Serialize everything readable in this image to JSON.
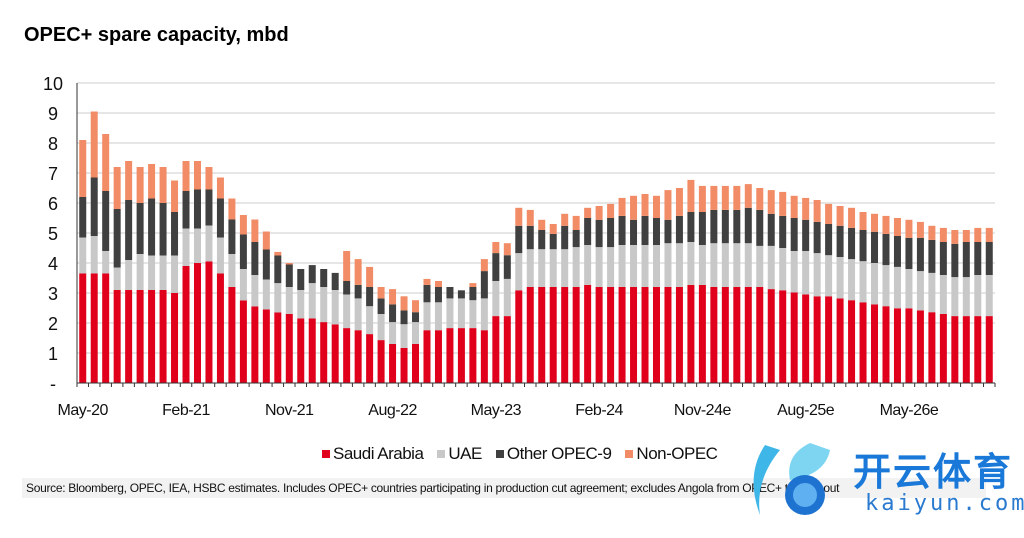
{
  "chart_data": {
    "type": "bar",
    "stacked": true,
    "title": "OPEC+ spare capacity, mbd",
    "xlabel": "",
    "ylabel": "",
    "ylim": [
      0,
      10
    ],
    "y_ticks": [
      "-",
      "1",
      "2",
      "3",
      "4",
      "5",
      "6",
      "7",
      "8",
      "9",
      "10"
    ],
    "grid": true,
    "legend_position": "bottom",
    "tick_labels": [
      "May-20",
      "Feb-21",
      "Nov-21",
      "Aug-22",
      "May-23",
      "Feb-24",
      "Nov-24e",
      "Aug-25e",
      "May-26e"
    ],
    "categories": [
      "May-20",
      "Jun-20",
      "Jul-20",
      "Aug-20",
      "Sep-20",
      "Oct-20",
      "Nov-20",
      "Dec-20",
      "Jan-21",
      "Feb-21",
      "Mar-21",
      "Apr-21",
      "May-21",
      "Jun-21",
      "Jul-21",
      "Aug-21",
      "Sep-21",
      "Oct-21",
      "Nov-21",
      "Dec-21",
      "Jan-22",
      "Feb-22",
      "Mar-22",
      "Apr-22",
      "May-22",
      "Jun-22",
      "Jul-22",
      "Aug-22",
      "Sep-22",
      "Oct-22",
      "Nov-22",
      "Dec-22",
      "Jan-23",
      "Feb-23",
      "Mar-23",
      "Apr-23",
      "May-23",
      "Jun-23",
      "Jul-23",
      "Aug-23",
      "Sep-23",
      "Oct-23",
      "Nov-23",
      "Dec-23",
      "Jan-24",
      "Feb-24",
      "Mar-24",
      "Apr-24",
      "May-24",
      "Jun-24",
      "Jul-24",
      "Aug-24",
      "Sep-24",
      "Oct-24",
      "Nov-24",
      "Dec-24",
      "Jan-25",
      "Feb-25",
      "Mar-25",
      "Apr-25",
      "May-25",
      "Jun-25",
      "Jul-25",
      "Aug-25",
      "Sep-25",
      "Oct-25",
      "Nov-25",
      "Dec-25",
      "Jan-26",
      "Feb-26",
      "Mar-26",
      "Apr-26",
      "May-26",
      "Jun-26",
      "Jul-26",
      "Aug-26",
      "Sep-26",
      "Oct-26",
      "Nov-26",
      "Dec-26"
    ],
    "series": [
      {
        "name": "Saudi Arabia",
        "color": "#e0001b",
        "values": [
          3.65,
          3.65,
          3.65,
          3.1,
          3.1,
          3.1,
          3.1,
          3.1,
          3.0,
          3.9,
          4.0,
          4.05,
          3.65,
          3.2,
          2.75,
          2.55,
          2.45,
          2.35,
          2.3,
          2.15,
          2.15,
          2.03,
          1.95,
          1.83,
          1.76,
          1.63,
          1.43,
          1.3,
          1.17,
          1.3,
          1.76,
          1.76,
          1.83,
          1.83,
          1.83,
          1.76,
          2.23,
          2.23,
          3.09,
          3.2,
          3.2,
          3.2,
          3.2,
          3.2,
          3.27,
          3.2,
          3.2,
          3.2,
          3.2,
          3.2,
          3.2,
          3.2,
          3.2,
          3.27,
          3.27,
          3.2,
          3.2,
          3.2,
          3.2,
          3.2,
          3.13,
          3.09,
          3.02,
          2.95,
          2.89,
          2.89,
          2.82,
          2.76,
          2.69,
          2.62,
          2.56,
          2.49,
          2.49,
          2.42,
          2.36,
          2.3,
          2.23,
          2.23,
          2.23,
          2.23
        ]
      },
      {
        "name": "UAE",
        "color": "#c8c8c8",
        "values": [
          1.2,
          1.25,
          0.75,
          0.75,
          1.0,
          1.2,
          1.15,
          1.15,
          1.25,
          1.25,
          1.15,
          1.2,
          1.2,
          1.1,
          1.05,
          1.05,
          1.0,
          0.98,
          0.9,
          0.95,
          1.18,
          1.17,
          1.15,
          1.12,
          1.06,
          0.93,
          0.87,
          0.73,
          0.79,
          0.73,
          0.93,
          0.93,
          0.99,
          0.99,
          0.93,
          1.06,
          1.17,
          1.24,
          1.24,
          1.26,
          1.26,
          1.26,
          1.26,
          1.33,
          1.33,
          1.33,
          1.33,
          1.4,
          1.4,
          1.4,
          1.4,
          1.46,
          1.46,
          1.43,
          1.33,
          1.46,
          1.46,
          1.46,
          1.46,
          1.37,
          1.44,
          1.41,
          1.38,
          1.45,
          1.44,
          1.37,
          1.38,
          1.37,
          1.37,
          1.38,
          1.37,
          1.38,
          1.31,
          1.31,
          1.31,
          1.3,
          1.3,
          1.3,
          1.37,
          1.37
        ]
      },
      {
        "name": "Other OPEC-9",
        "color": "#404040",
        "values": [
          1.35,
          1.95,
          2.0,
          1.95,
          2.0,
          1.7,
          1.9,
          1.75,
          1.45,
          1.25,
          1.3,
          1.2,
          1.3,
          1.15,
          1.15,
          1.1,
          1.0,
          0.92,
          0.75,
          0.7,
          0.6,
          0.6,
          0.57,
          0.45,
          0.45,
          0.64,
          0.52,
          0.59,
          0.46,
          0.33,
          0.58,
          0.51,
          0.38,
          0.27,
          0.44,
          0.91,
          0.93,
          0.79,
          0.91,
          0.78,
          0.64,
          0.51,
          0.78,
          0.57,
          0.9,
          0.91,
          0.97,
          0.97,
          0.84,
          0.97,
          0.9,
          0.78,
          0.91,
          1.0,
          1.1,
          1.11,
          1.11,
          1.11,
          1.18,
          1.2,
          1.07,
          1.07,
          1.1,
          1.04,
          1.04,
          1.04,
          1.04,
          1.04,
          1.04,
          1.04,
          1.04,
          1.03,
          1.04,
          1.11,
          1.1,
          1.1,
          1.11,
          1.17,
          1.1,
          1.1
        ]
      },
      {
        "name": "Non-OPEC",
        "color": "#f28c66",
        "values": [
          1.9,
          2.2,
          1.9,
          1.4,
          1.3,
          1.2,
          1.15,
          1.2,
          1.05,
          1.0,
          0.95,
          0.75,
          0.7,
          0.7,
          0.65,
          0.75,
          0.6,
          0.12,
          0.05,
          0,
          0,
          0,
          0,
          1.0,
          0.86,
          0.67,
          0.38,
          0.51,
          0.47,
          0.4,
          0.2,
          0.2,
          0,
          0,
          0.13,
          0.4,
          0.37,
          0.4,
          0.6,
          0.53,
          0.34,
          0.33,
          0.4,
          0.47,
          0.34,
          0.46,
          0.47,
          0.6,
          0.8,
          0.73,
          0.74,
          0.99,
          0.93,
          1.07,
          0.87,
          0.8,
          0.8,
          0.8,
          0.79,
          0.73,
          0.79,
          0.8,
          0.74,
          0.73,
          0.73,
          0.67,
          0.66,
          0.67,
          0.6,
          0.6,
          0.6,
          0.6,
          0.6,
          0.53,
          0.47,
          0.47,
          0.46,
          0.4,
          0.47,
          0.47
        ]
      }
    ],
    "source": "Source: Bloomberg, OPEC, IEA, HSBC estimates. Includes OPEC+ countries participating in production cut agreement; excludes Angola from OPEC+ throughout"
  },
  "watermark": {
    "text_cn": "开云体育",
    "text_en": "kaiyun.com"
  }
}
